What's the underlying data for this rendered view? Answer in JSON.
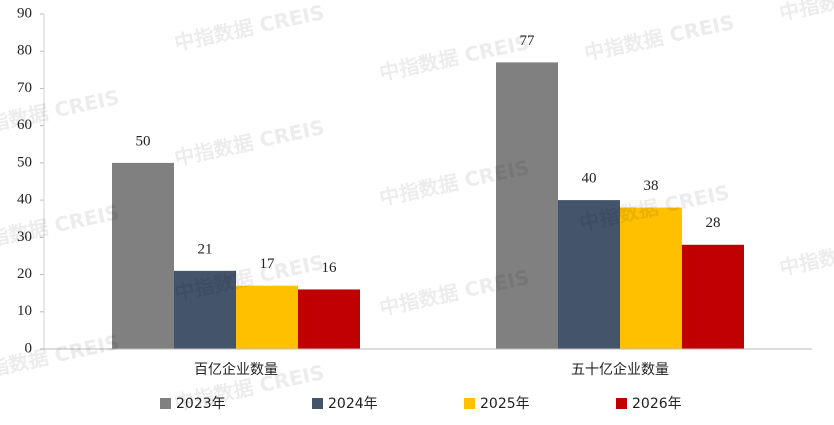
{
  "chart_data": {
    "type": "bar",
    "categories": [
      "百亿企业数量",
      "五十亿企业数量"
    ],
    "series": [
      {
        "name": "2023年",
        "color": "#808080",
        "values": [
          50,
          77
        ]
      },
      {
        "name": "2024年",
        "color": "#44546a",
        "values": [
          21,
          40
        ]
      },
      {
        "name": "2025年",
        "color": "#ffc000",
        "values": [
          17,
          38
        ]
      },
      {
        "name": "2026年",
        "color": "#c00000",
        "values": [
          16,
          28
        ]
      }
    ],
    "ylim": [
      0,
      90
    ],
    "yticks": [
      0,
      10,
      20,
      30,
      40,
      50,
      60,
      70,
      80,
      90
    ],
    "legend": "bottom",
    "watermark": "中指数据 CREIS"
  }
}
